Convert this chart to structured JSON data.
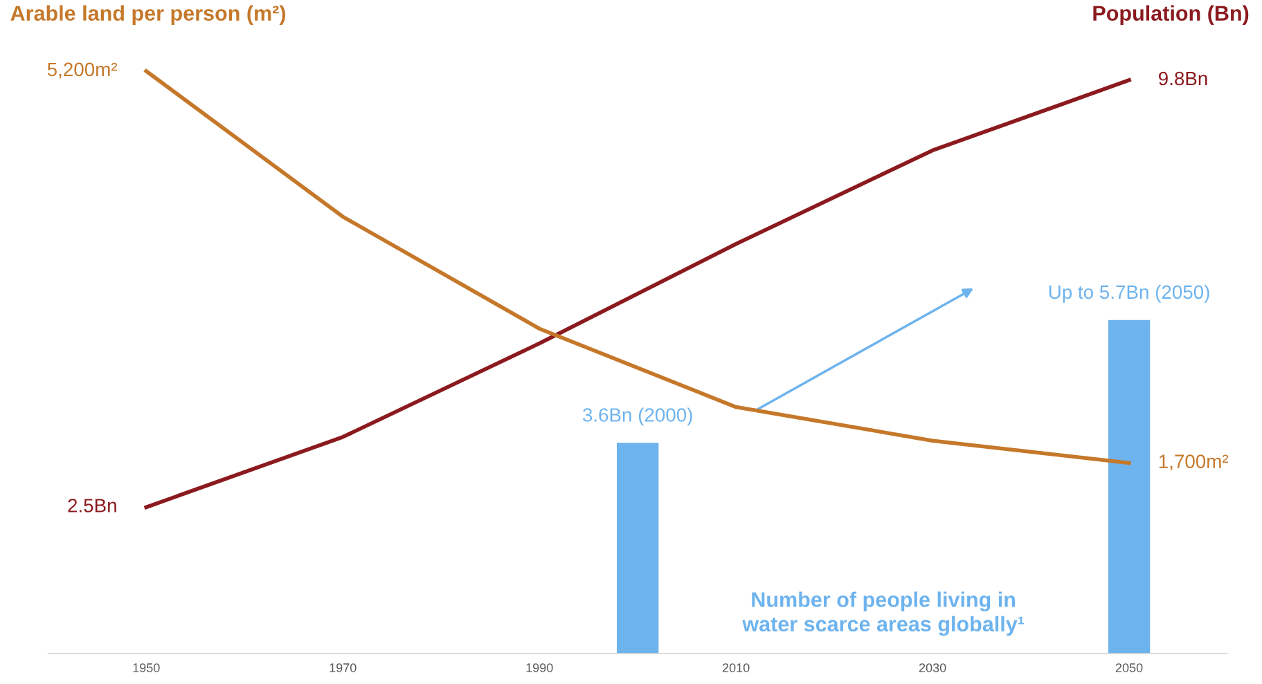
{
  "chart_data": {
    "type": "line",
    "ylabel": "Arable land per person (m²)",
    "y2label": "Population (Bn)",
    "x": [
      1950,
      1970,
      1990,
      2010,
      2030,
      2050
    ],
    "xlim": [
      1940,
      2060
    ],
    "xticks": [
      1950,
      1970,
      1990,
      2010,
      2030,
      2050
    ],
    "tick_labels": "x",
    "grid": false,
    "legend": false,
    "series": [
      {
        "color": "#c5782a",
        "values": [
          5200,
          3900,
          2900,
          2200,
          1900,
          1700
        ],
        "value_labels": [
          "5,200m²",
          null,
          null,
          null,
          null,
          "1,700m²"
        ]
      },
      {
        "color": "#8b1a1f",
        "axis": "y2",
        "values": [
          2.5,
          3.7,
          5.3,
          7.0,
          8.6,
          9.8
        ],
        "value_labels": [
          "2.5Bn",
          null,
          null,
          null,
          null,
          "9.8Bn"
        ]
      },
      {
        "type": "bar",
        "axis": "y2",
        "name": "Number of people living in water scarce areas globally¹",
        "color": "#6db3ee",
        "x": [
          2000,
          2050
        ],
        "values": [
          3.6,
          5.7
        ],
        "value_labels": [
          "3.6Bn (2000)",
          "Up to 5.7Bn (2050)"
        ]
      }
    ]
  }
}
